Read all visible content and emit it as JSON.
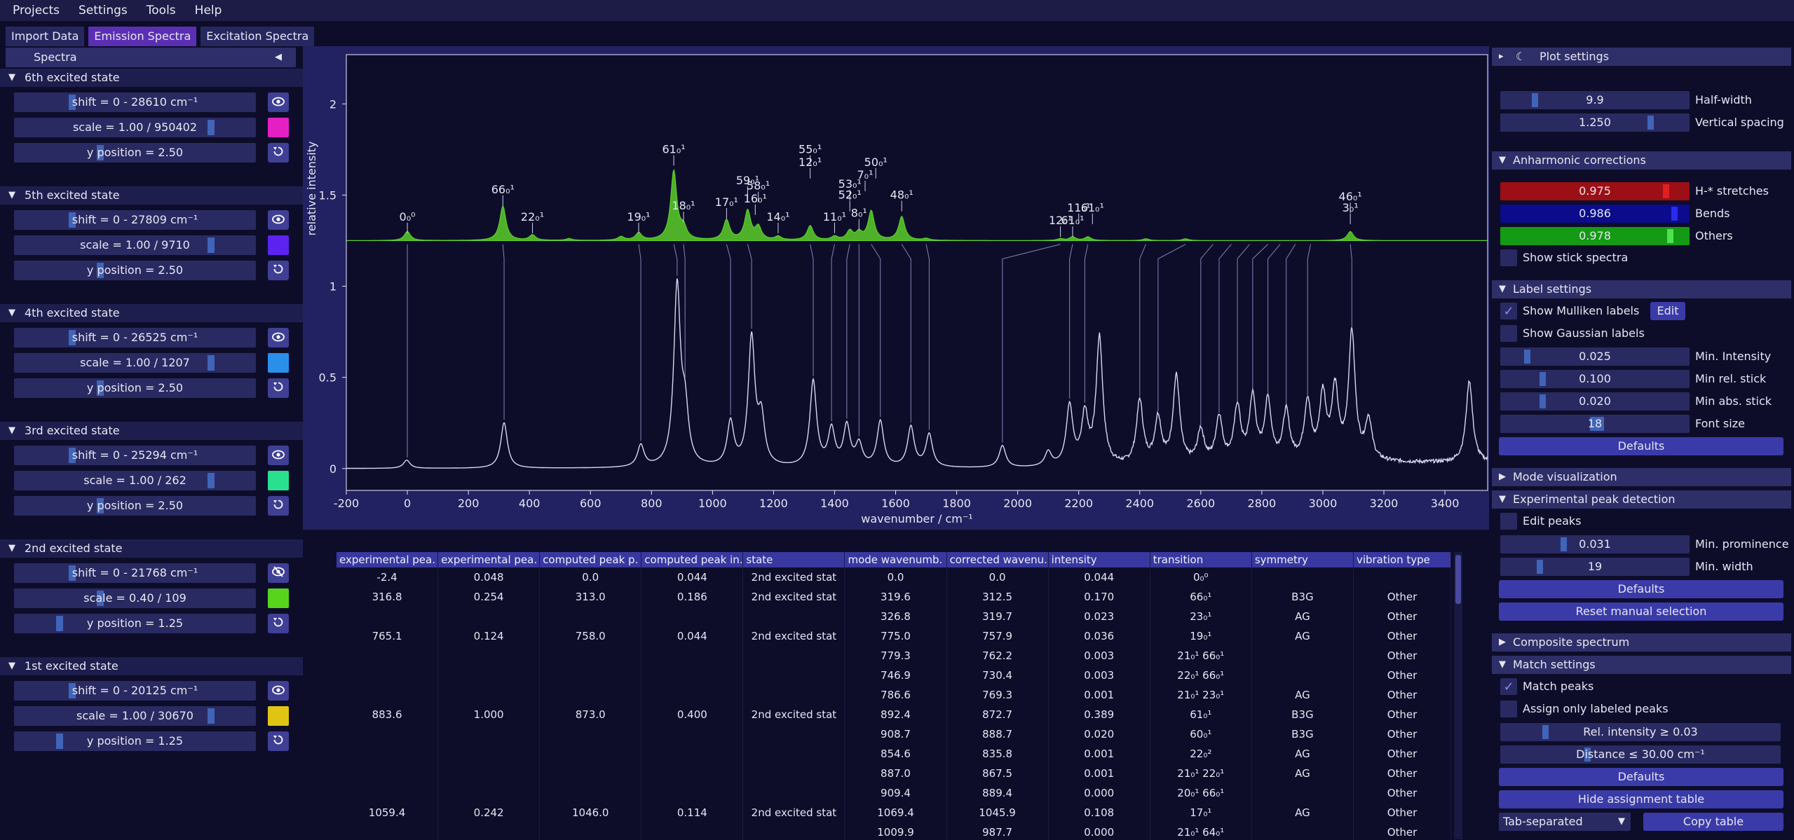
{
  "menu": [
    "Projects",
    "Settings",
    "Tools",
    "Help"
  ],
  "tabs": [
    "Import Data",
    "Emission Spectra",
    "Excitation Spectra"
  ],
  "left": {
    "title": "Spectra",
    "states": [
      {
        "name": "6th excited state",
        "shift": "shift = 0 - 28610 cm⁻¹",
        "scale": "scale = 1.00 / 950402",
        "ypos": "y position = 2.50",
        "color": "#e51fc4"
      },
      {
        "name": "5th excited state",
        "shift": "shift = 0 - 27809 cm⁻¹",
        "scale": "scale = 1.00 / 9710",
        "ypos": "y position = 2.50",
        "color": "#5b22f0"
      },
      {
        "name": "4th excited state",
        "shift": "shift = 0 - 26525 cm⁻¹",
        "scale": "scale = 1.00 / 1207",
        "ypos": "y position = 2.50",
        "color": "#2a8fe8"
      },
      {
        "name": "3rd excited state",
        "shift": "shift = 0 - 25294 cm⁻¹",
        "scale": "scale = 1.00 / 262",
        "ypos": "y position = 2.50",
        "color": "#28e08e"
      },
      {
        "name": "2nd excited state",
        "shift": "shift = 0 - 21768 cm⁻¹",
        "scale": "scale = 0.40 / 109",
        "ypos": "y position = 1.25",
        "color": "#57d41c"
      },
      {
        "name": "1st excited state",
        "shift": "shift = 0 - 20125 cm⁻¹",
        "scale": "scale = 1.00 / 30670",
        "ypos": "y position = 1.25",
        "color": "#e0c414"
      }
    ]
  },
  "plot": {
    "ylabel": "relative intensity",
    "xlabel": "wavenumber / cm⁻¹",
    "colors": {
      "computed": "#5ccf2a",
      "experimental": "#d8d8f0",
      "axis_bg": "#0d0d2a",
      "frame_bg": "#222262"
    }
  },
  "chart_data": {
    "type": "line",
    "xlabel": "wavenumber / cm⁻¹",
    "ylabel": "relative intensity",
    "xlim": [
      -200,
      3540
    ],
    "ylim": [
      -0.12,
      2.27
    ],
    "x_ticks": [
      "-200",
      "0",
      "200",
      "400",
      "600",
      "800",
      "1000",
      "1200",
      "1400",
      "1600",
      "1800",
      "2000",
      "2200",
      "2400",
      "2600",
      "2800",
      "3000",
      "3200",
      "3400"
    ],
    "y_ticks": [
      "0",
      "0.5",
      "1",
      "1.5",
      "2"
    ],
    "series": [
      {
        "offset": 1.25,
        "peaks": [
          {
            "x": 0,
            "h": 0.05
          },
          {
            "x": 313,
            "h": 0.19
          },
          {
            "x": 410,
            "h": 0.03
          },
          {
            "x": 530,
            "h": 0.01
          },
          {
            "x": 700,
            "h": 0.02
          },
          {
            "x": 758,
            "h": 0.04
          },
          {
            "x": 873,
            "h": 0.38
          },
          {
            "x": 905,
            "h": 0.06
          },
          {
            "x": 1046,
            "h": 0.11
          },
          {
            "x": 1115,
            "h": 0.16
          },
          {
            "x": 1150,
            "h": 0.07
          },
          {
            "x": 1215,
            "h": 0.02
          },
          {
            "x": 1320,
            "h": 0.08
          },
          {
            "x": 1400,
            "h": 0.02
          },
          {
            "x": 1450,
            "h": 0.05
          },
          {
            "x": 1480,
            "h": 0.04
          },
          {
            "x": 1520,
            "h": 0.16
          },
          {
            "x": 1620,
            "h": 0.13
          },
          {
            "x": 1700,
            "h": 0.01
          },
          {
            "x": 2140,
            "h": 0.01
          },
          {
            "x": 2180,
            "h": 0.02
          },
          {
            "x": 2230,
            "h": 0.02
          },
          {
            "x": 2420,
            "h": 0.01
          },
          {
            "x": 2550,
            "h": 0.01
          },
          {
            "x": 3090,
            "h": 0.05
          }
        ]
      },
      {
        "offset": 0,
        "peaks": [
          {
            "x": -2,
            "h": 0.045
          },
          {
            "x": 317,
            "h": 0.25
          },
          {
            "x": 765,
            "h": 0.12
          },
          {
            "x": 884,
            "h": 0.98
          },
          {
            "x": 910,
            "h": 0.28
          },
          {
            "x": 1059,
            "h": 0.24
          },
          {
            "x": 1128,
            "h": 0.7
          },
          {
            "x": 1160,
            "h": 0.25
          },
          {
            "x": 1330,
            "h": 0.47
          },
          {
            "x": 1390,
            "h": 0.2
          },
          {
            "x": 1440,
            "h": 0.22
          },
          {
            "x": 1480,
            "h": 0.12
          },
          {
            "x": 1550,
            "h": 0.25
          },
          {
            "x": 1650,
            "h": 0.22
          },
          {
            "x": 1710,
            "h": 0.18
          },
          {
            "x": 1950,
            "h": 0.12
          },
          {
            "x": 2100,
            "h": 0.08
          },
          {
            "x": 2170,
            "h": 0.33
          },
          {
            "x": 2220,
            "h": 0.27
          },
          {
            "x": 2268,
            "h": 0.7
          },
          {
            "x": 2400,
            "h": 0.35
          },
          {
            "x": 2460,
            "h": 0.25
          },
          {
            "x": 2520,
            "h": 0.48
          },
          {
            "x": 2600,
            "h": 0.18
          },
          {
            "x": 2660,
            "h": 0.25
          },
          {
            "x": 2720,
            "h": 0.3
          },
          {
            "x": 2770,
            "h": 0.35
          },
          {
            "x": 2820,
            "h": 0.33
          },
          {
            "x": 2880,
            "h": 0.27
          },
          {
            "x": 2950,
            "h": 0.32
          },
          {
            "x": 3000,
            "h": 0.35
          },
          {
            "x": 3040,
            "h": 0.38
          },
          {
            "x": 3095,
            "h": 0.7
          },
          {
            "x": 3150,
            "h": 0.22
          },
          {
            "x": 3480,
            "h": 0.45
          }
        ]
      }
    ],
    "labels": [
      {
        "x": 0,
        "y": 1.36,
        "t": "0₀⁰"
      },
      {
        "x": 313,
        "y": 1.51,
        "t": "66₀¹"
      },
      {
        "x": 410,
        "y": 1.36,
        "t": "22₀¹"
      },
      {
        "x": 758,
        "y": 1.36,
        "t": "19₀¹"
      },
      {
        "x": 873,
        "y": 1.73,
        "t": "61₀¹"
      },
      {
        "x": 905,
        "y": 1.42,
        "t": "18₀¹"
      },
      {
        "x": 1046,
        "y": 1.44,
        "t": "17₀¹"
      },
      {
        "x": 1115,
        "y": 1.56,
        "t": "59₀¹"
      },
      {
        "x": 1150,
        "y": 1.53,
        "t": "58₀¹"
      },
      {
        "x": 1140,
        "y": 1.46,
        "t": "16₀¹"
      },
      {
        "x": 1215,
        "y": 1.36,
        "t": "14₀¹"
      },
      {
        "x": 1320,
        "y": 1.73,
        "t": "55₀¹"
      },
      {
        "x": 1320,
        "y": 1.66,
        "t": "12₀¹"
      },
      {
        "x": 1400,
        "y": 1.36,
        "t": "11₀¹"
      },
      {
        "x": 1450,
        "y": 1.54,
        "t": "53₀¹"
      },
      {
        "x": 1450,
        "y": 1.48,
        "t": "52₀¹"
      },
      {
        "x": 1480,
        "y": 1.38,
        "t": "8₀¹"
      },
      {
        "x": 1500,
        "y": 1.59,
        "t": "7₀¹"
      },
      {
        "x": 1535,
        "y": 1.66,
        "t": "50₀¹"
      },
      {
        "x": 1620,
        "y": 1.48,
        "t": "48₀¹"
      },
      {
        "x": 2140,
        "y": 1.34,
        "t": "12₀¹"
      },
      {
        "x": 2180,
        "y": 1.34,
        "t": "61₀¹"
      },
      {
        "x": 2200,
        "y": 1.41,
        "t": "11₀¹"
      },
      {
        "x": 2245,
        "y": 1.41,
        "t": "61₀¹"
      },
      {
        "x": 3090,
        "y": 1.47,
        "t": "46₀¹"
      },
      {
        "x": 3090,
        "y": 1.41,
        "t": "3₀¹"
      }
    ]
  },
  "table": {
    "columns": [
      "experimental pea.",
      "experimental pea.",
      "computed peak p.",
      "computed peak in.",
      "state",
      "mode wavenumb.",
      "corrected wavenu.",
      "intensity",
      "transition",
      "symmetry",
      "vibration type"
    ],
    "rows": [
      [
        "-2.4",
        "0.048",
        "0.0",
        "0.044",
        "2nd excited stat",
        "0.0",
        "0.0",
        "0.044",
        "0₀⁰",
        "",
        ""
      ],
      [
        "316.8",
        "0.254",
        "313.0",
        "0.186",
        "2nd excited stat",
        "319.6",
        "312.5",
        "0.170",
        "66₀¹",
        "B3G",
        "Other"
      ],
      [
        "",
        "",
        "",
        "",
        "",
        "326.8",
        "319.7",
        "0.023",
        "23₀¹",
        "AG",
        "Other"
      ],
      [
        "765.1",
        "0.124",
        "758.0",
        "0.044",
        "2nd excited stat",
        "775.0",
        "757.9",
        "0.036",
        "19₀¹",
        "AG",
        "Other"
      ],
      [
        "",
        "",
        "",
        "",
        "",
        "779.3",
        "762.2",
        "0.003",
        "21₀¹ 66₀¹",
        "",
        "Other"
      ],
      [
        "",
        "",
        "",
        "",
        "",
        "746.9",
        "730.4",
        "0.003",
        "22₀¹ 66₀¹",
        "",
        "Other"
      ],
      [
        "",
        "",
        "",
        "",
        "",
        "786.6",
        "769.3",
        "0.001",
        "21₀¹ 23₀¹",
        "AG",
        "Other"
      ],
      [
        "883.6",
        "1.000",
        "873.0",
        "0.400",
        "2nd excited stat",
        "892.4",
        "872.7",
        "0.389",
        "61₀¹",
        "B3G",
        "Other"
      ],
      [
        "",
        "",
        "",
        "",
        "",
        "908.7",
        "888.7",
        "0.020",
        "60₀¹",
        "B3G",
        "Other"
      ],
      [
        "",
        "",
        "",
        "",
        "",
        "854.6",
        "835.8",
        "0.001",
        "22₀²",
        "AG",
        "Other"
      ],
      [
        "",
        "",
        "",
        "",
        "",
        "887.0",
        "867.5",
        "0.001",
        "21₀¹ 22₀¹",
        "AG",
        "Other"
      ],
      [
        "",
        "",
        "",
        "",
        "",
        "909.4",
        "889.4",
        "0.000",
        "20₀¹ 66₀¹",
        "",
        "Other"
      ],
      [
        "1059.4",
        "0.242",
        "1046.0",
        "0.114",
        "2nd excited stat",
        "1069.4",
        "1045.9",
        "0.108",
        "17₀¹",
        "AG",
        "Other"
      ],
      [
        "",
        "",
        "",
        "",
        "",
        "1009.9",
        "987.7",
        "0.000",
        "21₀¹ 64₀¹",
        "",
        "Other"
      ]
    ]
  },
  "right": {
    "plot_settings": "Plot settings",
    "half_width": {
      "value": "9.9",
      "label": "Half-width"
    },
    "vertical_spacing": {
      "value": "1.250",
      "label": "Vertical spacing"
    },
    "anharmonic": "Anharmonic corrections",
    "stretches": {
      "value": "0.975",
      "label": "H-* stretches"
    },
    "bends": {
      "value": "0.986",
      "label": "Bends"
    },
    "others": {
      "value": "0.978",
      "label": "Others"
    },
    "show_stick": "Show stick spectra",
    "label_settings": "Label settings",
    "show_mulliken": "Show Mulliken labels",
    "edit": "Edit",
    "show_gaussian": "Show Gaussian labels",
    "min_intensity": {
      "value": "0.025",
      "label": "Min. Intensity"
    },
    "min_rel_stick": {
      "value": "0.100",
      "label": "Min rel. stick"
    },
    "min_abs_stick": {
      "value": "0.020",
      "label": "Min abs. stick"
    },
    "font_size": {
      "value": "18",
      "label": "Font size"
    },
    "defaults": "Defaults",
    "mode_vis": "Mode visualization",
    "exp_peak": "Experimental peak detection",
    "edit_peaks": "Edit peaks",
    "min_prominence": {
      "value": "0.031",
      "label": "Min. prominence"
    },
    "min_width": {
      "value": "19",
      "label": "Min. width"
    },
    "reset_manual": "Reset manual selection",
    "composite": "Composite spectrum",
    "match_settings": "Match settings",
    "match_peaks": "Match peaks",
    "assign_only": "Assign only labeled peaks",
    "rel_intensity": "Rel. intensity ≥ 0.03",
    "distance": "Distance ≤ 30.00  cm⁻¹",
    "hide_table": "Hide assignment table",
    "separator": "Tab-separated",
    "copy_table": "Copy table",
    "colors": {
      "stretches": "#9c0f14",
      "bends": "#0b0b8c",
      "others": "#149a14"
    }
  }
}
